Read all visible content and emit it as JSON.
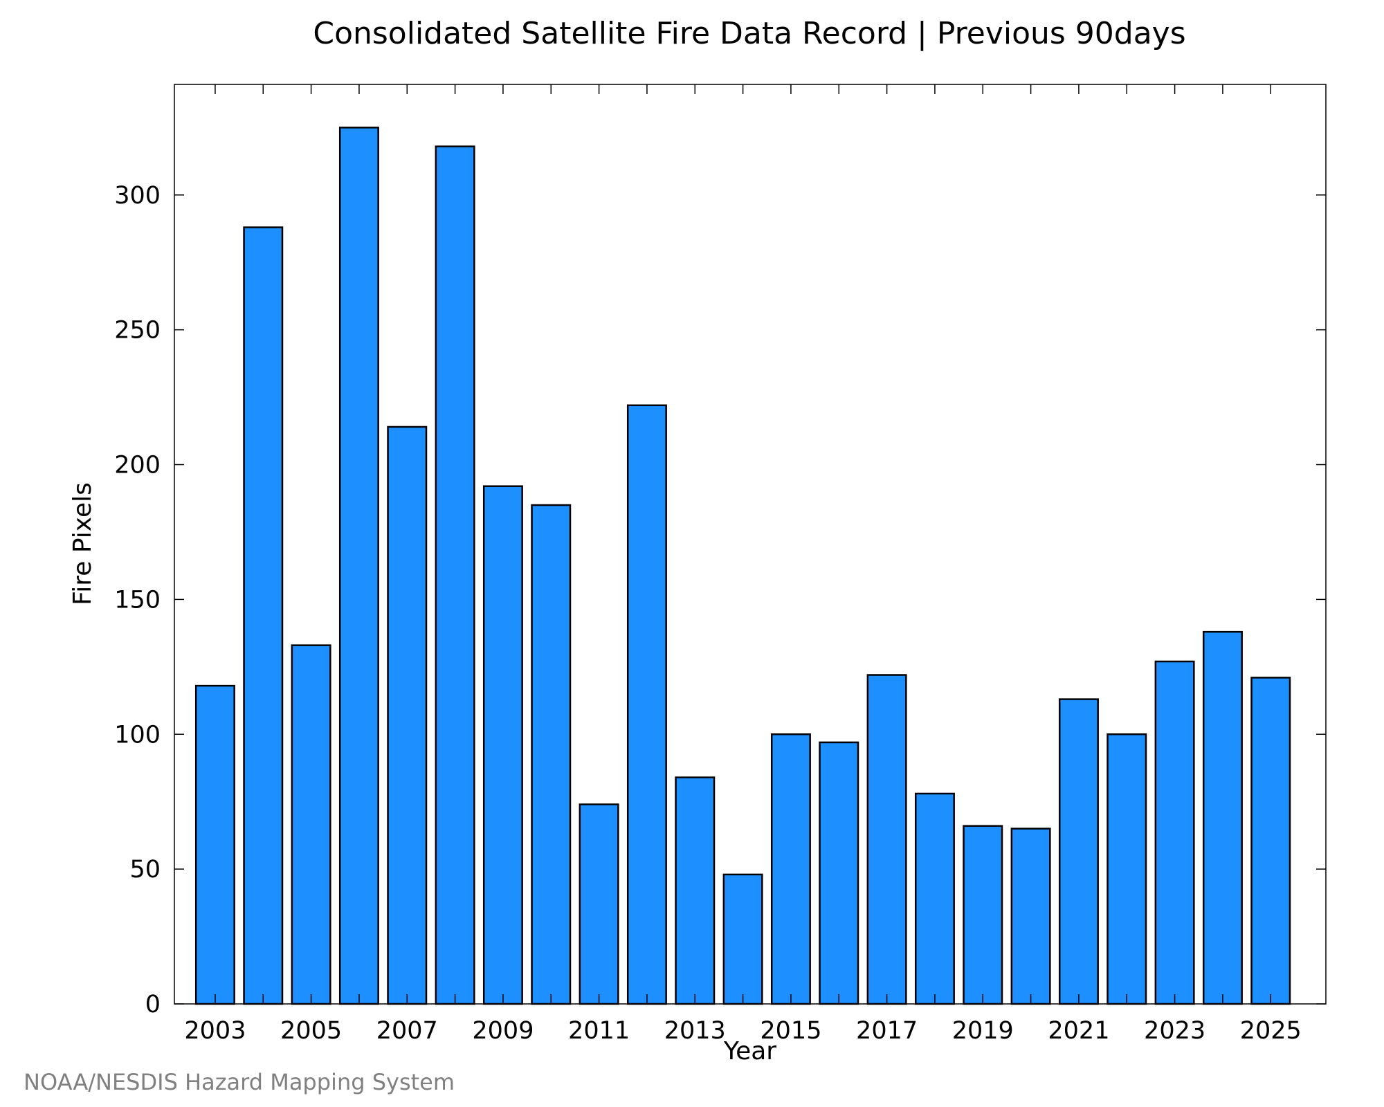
{
  "chart_data": {
    "type": "bar",
    "title": "Consolidated Satellite Fire Data Record | Previous 90days",
    "xlabel": "Year",
    "ylabel": "Fire Pixels",
    "categories": [
      "2003",
      "2004",
      "2005",
      "2006",
      "2007",
      "2008",
      "2009",
      "2010",
      "2011",
      "2012",
      "2013",
      "2014",
      "2015",
      "2016",
      "2017",
      "2018",
      "2019",
      "2020",
      "2021",
      "2022",
      "2023",
      "2024",
      "2025"
    ],
    "values": [
      118,
      288,
      133,
      325,
      214,
      318,
      192,
      185,
      74,
      222,
      84,
      48,
      100,
      97,
      122,
      78,
      66,
      65,
      113,
      100,
      127,
      138,
      121
    ],
    "ylim": [
      0,
      341
    ],
    "xlim": [
      2002.15,
      2026.15
    ],
    "y_ticks": [
      0,
      50,
      100,
      150,
      200,
      250,
      300
    ],
    "x_tick_labels": [
      "2003",
      "2005",
      "2007",
      "2009",
      "2011",
      "2013",
      "2015",
      "2017",
      "2019",
      "2021",
      "2023",
      "2025"
    ],
    "bar_color": "#1e8fff",
    "edge_color": "#000000",
    "grid": false,
    "legend": "none"
  },
  "footer": {
    "credit": "NOAA/NESDIS Hazard Mapping System"
  }
}
